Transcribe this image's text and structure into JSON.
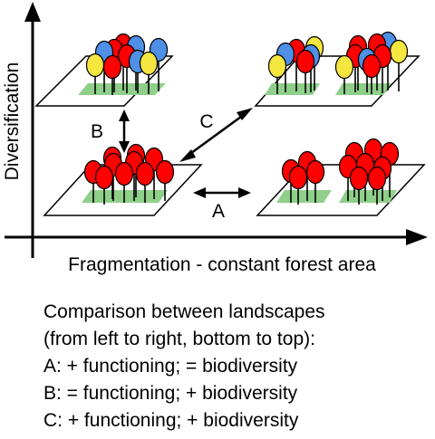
{
  "axes": {
    "y_label": "Diversification",
    "x_label": "Fragmentation - constant forest area"
  },
  "arrows": {
    "a_label": "A",
    "b_label": "B",
    "c_label": "C"
  },
  "colors": {
    "red": "#ff0000",
    "blue": "#4f8fe6",
    "yellow": "#f5e640",
    "understory": "#8fcf8a",
    "outline": "#000000"
  },
  "landscapes": [
    {
      "name": "low-fragmentation-high-diversity",
      "species": [
        "yellow",
        "red",
        "blue"
      ]
    },
    {
      "name": "high-fragmentation-high-diversity",
      "species": [
        "yellow",
        "red",
        "blue"
      ]
    },
    {
      "name": "low-fragmentation-low-diversity",
      "species": [
        "red"
      ]
    },
    {
      "name": "high-fragmentation-low-diversity",
      "species": [
        "red"
      ]
    }
  ],
  "caption": {
    "heading": "Comparison between landscapes",
    "subheading": "(from left to right, bottom to top):",
    "line_a": "A: + functioning; = biodiversity",
    "line_b": "B: = functioning; + biodiversity",
    "line_c": "C: + functioning; + biodiversity"
  }
}
